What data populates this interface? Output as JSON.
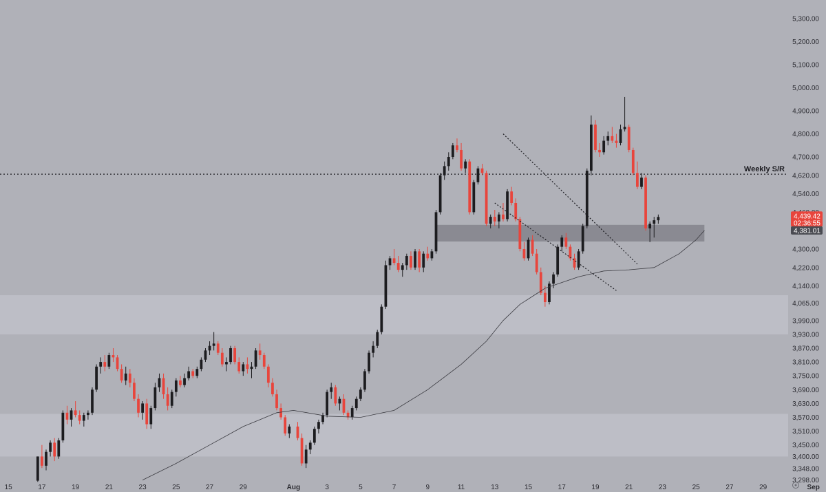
{
  "colors": {
    "background": "#b0b1b8",
    "zone": "#c0c1c8",
    "bull": "#1c1c1f",
    "bear": "#e8453c",
    "ma": "#3a3a40",
    "sr_box": "#7d7e85"
  },
  "chart_data": {
    "type": "candlestick",
    "title": "",
    "xlabel": "",
    "ylabel": "",
    "ylim": [
      3240,
      5330
    ],
    "y_ticks": [
      5300,
      5200,
      5100,
      5000,
      4900,
      4800,
      4700,
      4620,
      4540,
      4460,
      4300,
      4220,
      4140,
      4065,
      3990,
      3930,
      3870,
      3810,
      3750,
      3690,
      3630,
      3570,
      3510,
      3450,
      3400,
      3348,
      3298
    ],
    "y_tick_labels": [
      "5,300.00",
      "5,200.00",
      "5,100.00",
      "5,000.00",
      "4,900.00",
      "4,800.00",
      "4,700.00",
      "4,620.00",
      "4,540.00",
      "4,460.00",
      "4,300.00",
      "4,220.00",
      "4,140.00",
      "4,065.00",
      "3,990.00",
      "3,930.00",
      "3,870.00",
      "3,810.00",
      "3,750.00",
      "3,690.00",
      "3,630.00",
      "3,570.00",
      "3,510.00",
      "3,450.00",
      "3,400.00",
      "3,348.00",
      "3,298.00"
    ],
    "x_range": [
      "Jul 14 12:00",
      "Sep 1 18:00"
    ],
    "x_ticks": [
      "Jul 15",
      "Jul 17",
      "Jul 19",
      "Jul 21",
      "Jul 23",
      "Jul 25",
      "Jul 27",
      "Jul 29",
      "Aug 1",
      "Aug 3",
      "Aug 5",
      "Aug 7",
      "Aug 9",
      "Aug 11",
      "Aug 13",
      "Aug 15",
      "Aug 17",
      "Aug 19",
      "Aug 21",
      "Aug 23",
      "Aug 25",
      "Aug 27",
      "Aug 29",
      "Sep 1"
    ],
    "x_tick_labels": [
      "15",
      "17",
      "19",
      "21",
      "23",
      "25",
      "27",
      "29",
      "Aug",
      "3",
      "5",
      "7",
      "9",
      "11",
      "13",
      "15",
      "17",
      "19",
      "21",
      "23",
      "25",
      "27",
      "29",
      "Sep"
    ],
    "last_price": {
      "value": 4439.42,
      "label": "4,439.42",
      "timer": "02:36:55"
    },
    "sr_tag": {
      "value": 4381.01,
      "label": "4,381.01"
    },
    "horizontal_line": {
      "label": "Weekly S/R",
      "value": 4625
    },
    "zones": [
      {
        "from": 3930,
        "to": 4100
      },
      {
        "from": 3400,
        "to": 3585
      }
    ],
    "sr_box": {
      "from": 4333,
      "to": 4405,
      "x_start": "Aug 9 12:00",
      "x_end": "Aug 25 12:00"
    },
    "trendlines": [
      {
        "from": [
          "Aug 13 12:00",
          4800
        ],
        "to": [
          "Aug 21 12:00",
          4235
        ]
      },
      {
        "from": [
          "Aug 13 00:00",
          4500
        ],
        "to": [
          "Aug 20 06:00",
          4120
        ]
      }
    ],
    "ma_path": [
      [
        "Jul 23 00:00",
        3298
      ],
      [
        "Jul 25 00:00",
        3370
      ],
      [
        "Jul 27 00:00",
        3450
      ],
      [
        "Jul 29 00:00",
        3530
      ],
      [
        "Jul 31 00:00",
        3590
      ],
      [
        "Aug 1 00:00",
        3600
      ],
      [
        "Aug 3 00:00",
        3575
      ],
      [
        "Aug 5 00:00",
        3570
      ],
      [
        "Aug 7 00:00",
        3600
      ],
      [
        "Aug 9 00:00",
        3690
      ],
      [
        "Aug 11 00:00",
        3800
      ],
      [
        "Aug 12 12:00",
        3900
      ],
      [
        "Aug 13 12:00",
        3990
      ],
      [
        "Aug 14 12:00",
        4060
      ],
      [
        "Aug 16 00:00",
        4130
      ],
      [
        "Aug 18 00:00",
        4180
      ],
      [
        "Aug 19 12:00",
        4205
      ],
      [
        "Aug 21 00:00",
        4210
      ],
      [
        "Aug 22 12:00",
        4220
      ],
      [
        "Aug 24 00:00",
        4280
      ],
      [
        "Aug 25 00:00",
        4340
      ],
      [
        "Aug 25 12:00",
        4381
      ]
    ],
    "candles": [
      [
        "Jul 16 18:00",
        3295,
        3400,
        3290,
        3400
      ],
      [
        "Jul 17 00:00",
        3400,
        3450,
        3350,
        3360
      ],
      [
        "Jul 17 06:00",
        3360,
        3430,
        3340,
        3420
      ],
      [
        "Jul 17 12:00",
        3420,
        3470,
        3400,
        3460
      ],
      [
        "Jul 17 18:00",
        3460,
        3480,
        3380,
        3400
      ],
      [
        "Jul 18 00:00",
        3400,
        3480,
        3390,
        3470
      ],
      [
        "Jul 18 06:00",
        3470,
        3600,
        3460,
        3590
      ],
      [
        "Jul 18 12:00",
        3590,
        3620,
        3540,
        3560
      ],
      [
        "Jul 18 18:00",
        3560,
        3610,
        3530,
        3600
      ],
      [
        "Jul 19 00:00",
        3600,
        3640,
        3570,
        3580
      ],
      [
        "Jul 19 06:00",
        3580,
        3600,
        3540,
        3555
      ],
      [
        "Jul 19 12:00",
        3555,
        3590,
        3530,
        3580
      ],
      [
        "Jul 19 18:00",
        3580,
        3600,
        3560,
        3590
      ],
      [
        "Jul 20 00:00",
        3590,
        3700,
        3580,
        3690
      ],
      [
        "Jul 20 06:00",
        3690,
        3800,
        3680,
        3790
      ],
      [
        "Jul 20 12:00",
        3790,
        3830,
        3760,
        3810
      ],
      [
        "Jul 20 18:00",
        3810,
        3840,
        3770,
        3790
      ],
      [
        "Jul 21 00:00",
        3790,
        3850,
        3780,
        3840
      ],
      [
        "Jul 21 06:00",
        3840,
        3870,
        3810,
        3830
      ],
      [
        "Jul 21 12:00",
        3830,
        3840,
        3770,
        3780
      ],
      [
        "Jul 21 18:00",
        3780,
        3800,
        3720,
        3730
      ],
      [
        "Jul 22 00:00",
        3730,
        3790,
        3710,
        3760
      ],
      [
        "Jul 22 06:00",
        3760,
        3780,
        3700,
        3720
      ],
      [
        "Jul 22 12:00",
        3720,
        3740,
        3640,
        3650
      ],
      [
        "Jul 22 18:00",
        3650,
        3670,
        3570,
        3590
      ],
      [
        "Jul 23 00:00",
        3590,
        3640,
        3560,
        3630
      ],
      [
        "Jul 23 06:00",
        3630,
        3650,
        3520,
        3540
      ],
      [
        "Jul 23 12:00",
        3540,
        3620,
        3520,
        3610
      ],
      [
        "Jul 23 18:00",
        3610,
        3720,
        3600,
        3700
      ],
      [
        "Jul 24 00:00",
        3700,
        3760,
        3680,
        3740
      ],
      [
        "Jul 24 06:00",
        3740,
        3760,
        3650,
        3670
      ],
      [
        "Jul 24 12:00",
        3670,
        3700,
        3600,
        3620
      ],
      [
        "Jul 24 18:00",
        3620,
        3690,
        3610,
        3680
      ],
      [
        "Jul 25 00:00",
        3680,
        3740,
        3660,
        3730
      ],
      [
        "Jul 25 06:00",
        3730,
        3750,
        3700,
        3710
      ],
      [
        "Jul 25 12:00",
        3710,
        3760,
        3700,
        3740
      ],
      [
        "Jul 25 18:00",
        3740,
        3790,
        3730,
        3770
      ],
      [
        "Jul 26 00:00",
        3770,
        3780,
        3740,
        3750
      ],
      [
        "Jul 26 06:00",
        3750,
        3790,
        3740,
        3780
      ],
      [
        "Jul 26 12:00",
        3780,
        3830,
        3770,
        3820
      ],
      [
        "Jul 26 18:00",
        3820,
        3870,
        3810,
        3860
      ],
      [
        "Jul 27 00:00",
        3860,
        3900,
        3840,
        3880
      ],
      [
        "Jul 27 06:00",
        3880,
        3940,
        3860,
        3890
      ],
      [
        "Jul 27 12:00",
        3890,
        3900,
        3840,
        3850
      ],
      [
        "Jul 27 18:00",
        3850,
        3870,
        3790,
        3800
      ],
      [
        "Jul 28 00:00",
        3800,
        3830,
        3770,
        3810
      ],
      [
        "Jul 28 06:00",
        3810,
        3880,
        3800,
        3870
      ],
      [
        "Jul 28 12:00",
        3870,
        3880,
        3800,
        3810
      ],
      [
        "Jul 28 18:00",
        3810,
        3830,
        3760,
        3770
      ],
      [
        "Jul 29 00:00",
        3770,
        3810,
        3750,
        3800
      ],
      [
        "Jul 29 06:00",
        3800,
        3830,
        3760,
        3780
      ],
      [
        "Jul 29 12:00",
        3780,
        3810,
        3740,
        3790
      ],
      [
        "Jul 29 18:00",
        3790,
        3870,
        3780,
        3860
      ],
      [
        "Jul 30 00:00",
        3860,
        3890,
        3820,
        3840
      ],
      [
        "Jul 30 06:00",
        3840,
        3850,
        3780,
        3790
      ],
      [
        "Jul 30 12:00",
        3790,
        3800,
        3700,
        3720
      ],
      [
        "Jul 30 18:00",
        3720,
        3740,
        3660,
        3670
      ],
      [
        "Jul 31 00:00",
        3670,
        3690,
        3600,
        3610
      ],
      [
        "Jul 31 06:00",
        3610,
        3630,
        3560,
        3570
      ],
      [
        "Jul 31 12:00",
        3570,
        3580,
        3490,
        3500
      ],
      [
        "Jul 31 18:00",
        3500,
        3540,
        3480,
        3530
      ],
      [
        "Aug 1 06:00",
        3530,
        3550,
        3470,
        3480
      ],
      [
        "Aug 1 12:00",
        3480,
        3500,
        3360,
        3370
      ],
      [
        "Aug 1 18:00",
        3370,
        3450,
        3350,
        3430
      ],
      [
        "Aug 2 00:00",
        3430,
        3470,
        3410,
        3460
      ],
      [
        "Aug 2 06:00",
        3460,
        3530,
        3450,
        3520
      ],
      [
        "Aug 2 12:00",
        3520,
        3560,
        3500,
        3550
      ],
      [
        "Aug 2 18:00",
        3550,
        3590,
        3540,
        3580
      ],
      [
        "Aug 3 00:00",
        3580,
        3690,
        3570,
        3680
      ],
      [
        "Aug 3 06:00",
        3680,
        3720,
        3650,
        3700
      ],
      [
        "Aug 3 12:00",
        3700,
        3710,
        3620,
        3630
      ],
      [
        "Aug 3 18:00",
        3630,
        3660,
        3600,
        3650
      ],
      [
        "Aug 4 00:00",
        3650,
        3670,
        3580,
        3590
      ],
      [
        "Aug 4 06:00",
        3590,
        3600,
        3560,
        3570
      ],
      [
        "Aug 4 12:00",
        3570,
        3620,
        3560,
        3610
      ],
      [
        "Aug 4 18:00",
        3610,
        3660,
        3600,
        3650
      ],
      [
        "Aug 5 00:00",
        3650,
        3700,
        3640,
        3690
      ],
      [
        "Aug 5 06:00",
        3690,
        3780,
        3680,
        3770
      ],
      [
        "Aug 5 12:00",
        3770,
        3860,
        3760,
        3850
      ],
      [
        "Aug 5 18:00",
        3850,
        3900,
        3830,
        3880
      ],
      [
        "Aug 6 00:00",
        3880,
        3950,
        3870,
        3940
      ],
      [
        "Aug 6 06:00",
        3940,
        4060,
        3930,
        4050
      ],
      [
        "Aug 6 12:00",
        4050,
        4250,
        4040,
        4230
      ],
      [
        "Aug 6 18:00",
        4230,
        4270,
        4210,
        4260
      ],
      [
        "Aug 7 00:00",
        4260,
        4300,
        4230,
        4240
      ],
      [
        "Aug 7 06:00",
        4240,
        4270,
        4200,
        4210
      ],
      [
        "Aug 7 12:00",
        4210,
        4240,
        4180,
        4230
      ],
      [
        "Aug 7 18:00",
        4230,
        4280,
        4210,
        4270
      ],
      [
        "Aug 8 00:00",
        4270,
        4290,
        4210,
        4220
      ],
      [
        "Aug 8 06:00",
        4220,
        4300,
        4210,
        4290
      ],
      [
        "Aug 8 12:00",
        4290,
        4300,
        4200,
        4220
      ],
      [
        "Aug 8 18:00",
        4220,
        4290,
        4200,
        4280
      ],
      [
        "Aug 9 00:00",
        4280,
        4310,
        4250,
        4260
      ],
      [
        "Aug 9 06:00",
        4260,
        4300,
        4250,
        4290
      ],
      [
        "Aug 9 12:00",
        4290,
        4470,
        4280,
        4460
      ],
      [
        "Aug 9 18:00",
        4460,
        4630,
        4450,
        4620
      ],
      [
        "Aug 10 00:00",
        4620,
        4680,
        4600,
        4660
      ],
      [
        "Aug 10 06:00",
        4660,
        4720,
        4640,
        4700
      ],
      [
        "Aug 10 12:00",
        4700,
        4760,
        4690,
        4750
      ],
      [
        "Aug 10 18:00",
        4750,
        4780,
        4720,
        4730
      ],
      [
        "Aug 11 00:00",
        4730,
        4760,
        4640,
        4650
      ],
      [
        "Aug 11 06:00",
        4650,
        4690,
        4630,
        4680
      ],
      [
        "Aug 11 12:00",
        4680,
        4690,
        4450,
        4460
      ],
      [
        "Aug 11 18:00",
        4460,
        4600,
        4450,
        4590
      ],
      [
        "Aug 12 00:00",
        4590,
        4660,
        4580,
        4650
      ],
      [
        "Aug 12 06:00",
        4650,
        4670,
        4620,
        4630
      ],
      [
        "Aug 12 12:00",
        4630,
        4640,
        4400,
        4410
      ],
      [
        "Aug 12 18:00",
        4410,
        4450,
        4390,
        4440
      ],
      [
        "Aug 13 00:00",
        4440,
        4470,
        4400,
        4420
      ],
      [
        "Aug 13 06:00",
        4420,
        4460,
        4390,
        4450
      ],
      [
        "Aug 13 12:00",
        4450,
        4500,
        4420,
        4430
      ],
      [
        "Aug 13 18:00",
        4430,
        4560,
        4420,
        4550
      ],
      [
        "Aug 14 00:00",
        4550,
        4570,
        4490,
        4500
      ],
      [
        "Aug 14 06:00",
        4500,
        4520,
        4420,
        4430
      ],
      [
        "Aug 14 12:00",
        4430,
        4440,
        4290,
        4300
      ],
      [
        "Aug 14 18:00",
        4300,
        4330,
        4250,
        4260
      ],
      [
        "Aug 15 00:00",
        4260,
        4350,
        4250,
        4340
      ],
      [
        "Aug 15 06:00",
        4340,
        4360,
        4270,
        4280
      ],
      [
        "Aug 15 12:00",
        4280,
        4300,
        4190,
        4200
      ],
      [
        "Aug 15 18:00",
        4200,
        4220,
        4100,
        4110
      ],
      [
        "Aug 16 00:00",
        4110,
        4140,
        4050,
        4070
      ],
      [
        "Aug 16 06:00",
        4070,
        4160,
        4060,
        4150
      ],
      [
        "Aug 16 12:00",
        4150,
        4200,
        4130,
        4190
      ],
      [
        "Aug 16 18:00",
        4190,
        4320,
        4180,
        4310
      ],
      [
        "Aug 17 00:00",
        4310,
        4360,
        4290,
        4350
      ],
      [
        "Aug 17 06:00",
        4350,
        4370,
        4300,
        4310
      ],
      [
        "Aug 17 12:00",
        4310,
        4320,
        4250,
        4260
      ],
      [
        "Aug 17 18:00",
        4260,
        4280,
        4210,
        4220
      ],
      [
        "Aug 18 00:00",
        4220,
        4300,
        4210,
        4290
      ],
      [
        "Aug 18 06:00",
        4290,
        4410,
        4280,
        4400
      ],
      [
        "Aug 18 12:00",
        4400,
        4650,
        4390,
        4640
      ],
      [
        "Aug 18 18:00",
        4640,
        4880,
        4620,
        4840
      ],
      [
        "Aug 19 00:00",
        4840,
        4860,
        4720,
        4730
      ],
      [
        "Aug 19 06:00",
        4730,
        4760,
        4700,
        4720
      ],
      [
        "Aug 19 12:00",
        4720,
        4790,
        4710,
        4770
      ],
      [
        "Aug 19 18:00",
        4770,
        4810,
        4750,
        4790
      ],
      [
        "Aug 20 00:00",
        4790,
        4830,
        4760,
        4770
      ],
      [
        "Aug 20 06:00",
        4770,
        4800,
        4740,
        4760
      ],
      [
        "Aug 20 12:00",
        4760,
        4840,
        4750,
        4820
      ],
      [
        "Aug 20 18:00",
        4820,
        4960,
        4810,
        4830
      ],
      [
        "Aug 21 00:00",
        4830,
        4840,
        4720,
        4730
      ],
      [
        "Aug 21 06:00",
        4730,
        4740,
        4620,
        4630
      ],
      [
        "Aug 21 12:00",
        4630,
        4680,
        4560,
        4570
      ],
      [
        "Aug 21 18:00",
        4570,
        4630,
        4560,
        4610
      ],
      [
        "Aug 22 00:00",
        4610,
        4620,
        4380,
        4390
      ],
      [
        "Aug 22 06:00",
        4390,
        4420,
        4330,
        4410
      ],
      [
        "Aug 22 12:00",
        4410,
        4440,
        4350,
        4425
      ],
      [
        "Aug 22 18:00",
        4425,
        4450,
        4410,
        4439.42
      ]
    ]
  }
}
